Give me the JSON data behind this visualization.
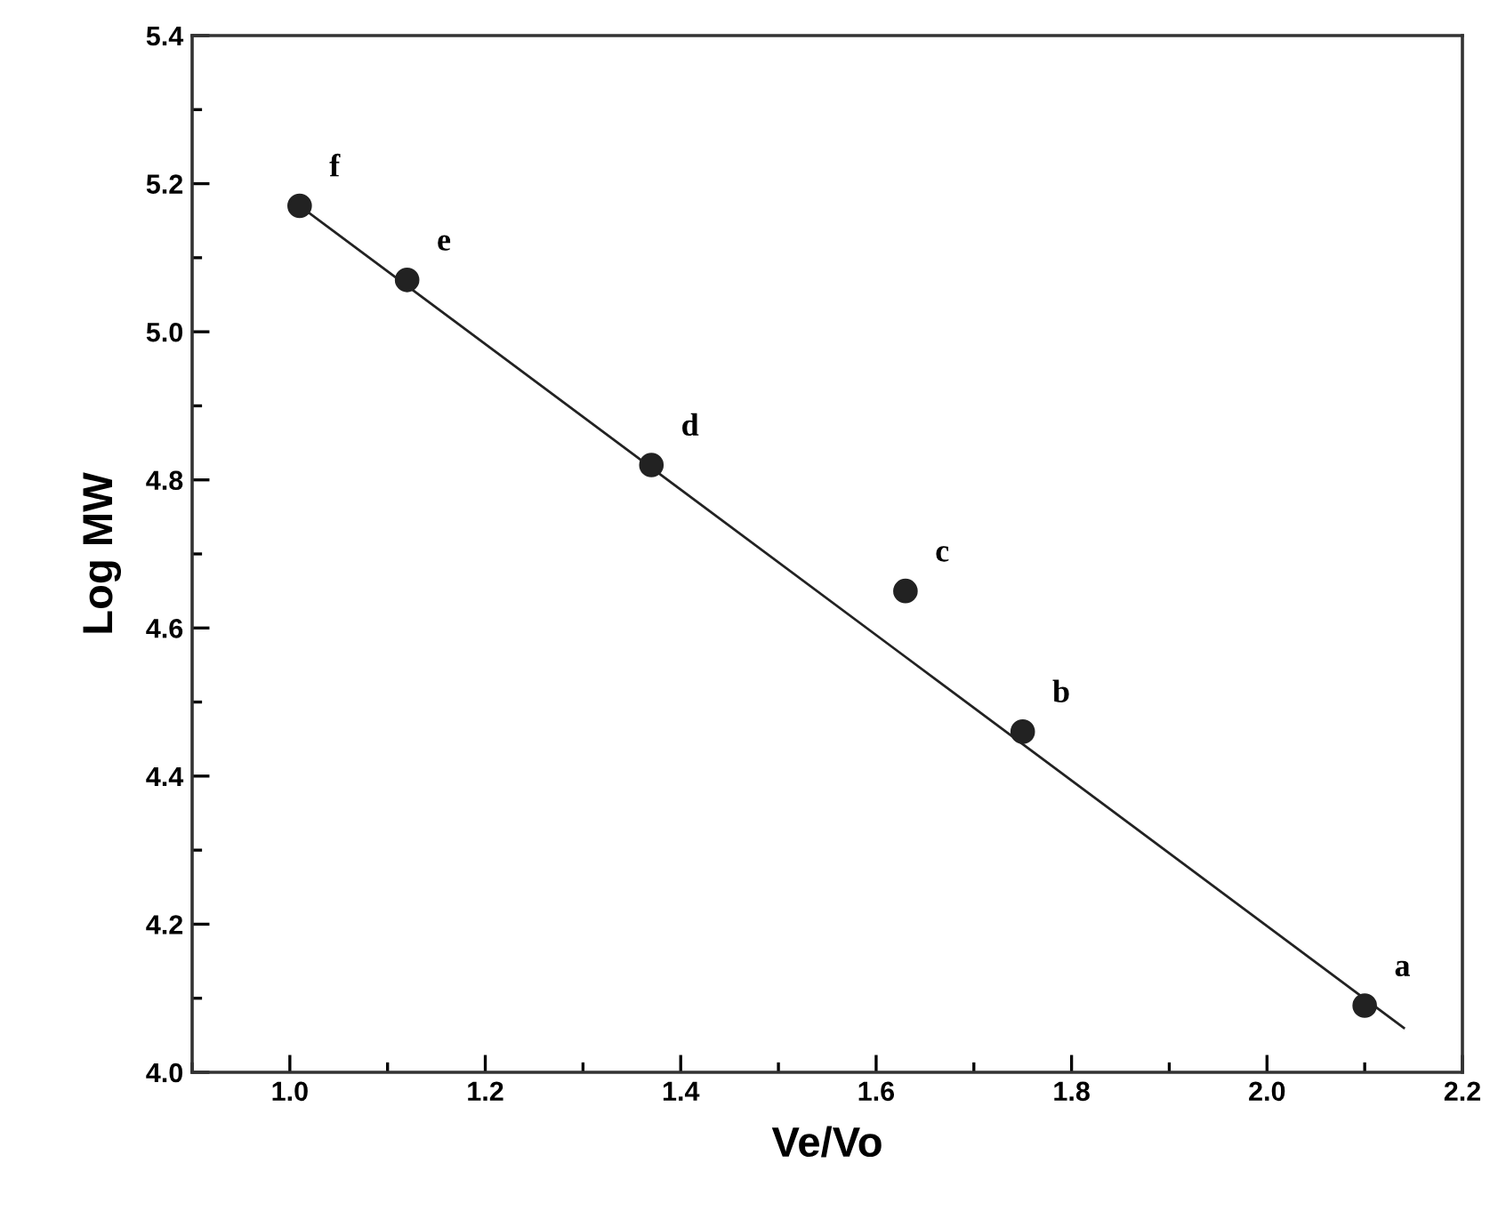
{
  "chart_data": {
    "type": "scatter",
    "xlabel": "Ve/Vo",
    "ylabel": "Log MW",
    "xlim": [
      0.9,
      2.2
    ],
    "ylim": [
      4.0,
      5.4
    ],
    "xticks": [
      {
        "value": 0.9,
        "label": null
      },
      {
        "value": 1.0,
        "label": "1.0"
      },
      {
        "value": 1.1,
        "label": null
      },
      1.2,
      {
        "value": 1.3,
        "label": null
      },
      1.4,
      {
        "value": 1.5,
        "label": null
      },
      1.6,
      {
        "value": 1.7,
        "label": null
      },
      1.8,
      {
        "value": 1.9,
        "label": null
      },
      {
        "value": 2.0,
        "label": "2.0"
      },
      {
        "value": 2.1,
        "label": null
      },
      2.2
    ],
    "yticks": [
      {
        "value": 4.0,
        "label": "4.0"
      },
      {
        "value": 4.1,
        "label": null
      },
      4.2,
      {
        "value": 4.3,
        "label": null
      },
      4.4,
      {
        "value": 4.5,
        "label": null
      },
      4.6,
      {
        "value": 4.7,
        "label": null
      },
      4.8,
      {
        "value": 4.9,
        "label": null
      },
      {
        "value": 5.0,
        "label": "5.0"
      },
      {
        "value": 5.1,
        "label": null
      },
      5.2,
      {
        "value": 5.3,
        "label": null
      },
      5.4
    ],
    "grid": false,
    "series": [
      {
        "color": "#222222",
        "marker": "circle",
        "x": [
          1.01,
          1.12,
          1.37,
          1.63,
          1.75,
          2.1
        ],
        "values": [
          5.17,
          5.07,
          4.82,
          4.65,
          4.46,
          4.09
        ]
      },
      {
        "type": "line",
        "color": "#222222",
        "marker": "none",
        "line_style": "solid",
        "x": [
          1.01,
          2.14
        ],
        "values": [
          5.17,
          4.06
        ]
      }
    ],
    "annotations": [
      {
        "text": "f",
        "x": 1.01,
        "y": 5.17
      },
      {
        "text": "e",
        "x": 1.12,
        "y": 5.07
      },
      {
        "text": "d",
        "x": 1.37,
        "y": 4.82
      },
      {
        "text": "c",
        "x": 1.63,
        "y": 4.65
      },
      {
        "text": "b",
        "x": 1.75,
        "y": 4.46
      },
      {
        "text": "a",
        "x": 2.1,
        "y": 4.09
      }
    ]
  }
}
